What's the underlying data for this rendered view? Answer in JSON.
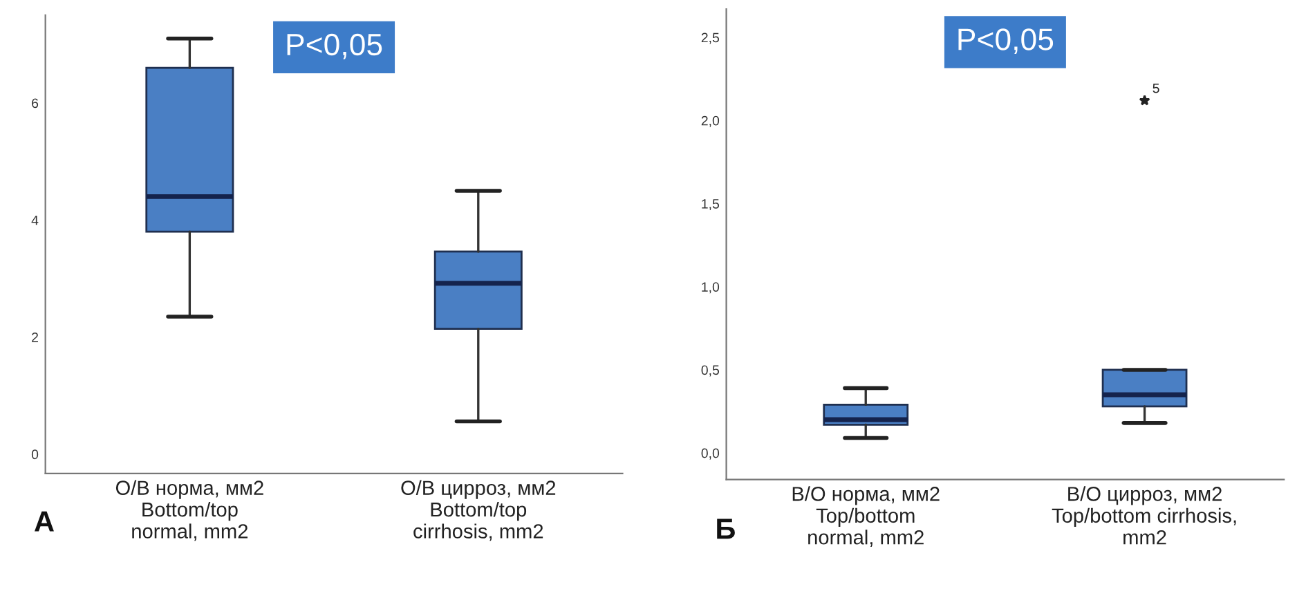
{
  "chart_data": [
    {
      "type": "box",
      "color": "#4a7fc4",
      "categories": [
        "О/В норма, мм2\nBottom/top\nnormal, mm2",
        "О/В цирроз, мм2\nBottom/top\ncirrhosis, mm2"
      ],
      "boxes": [
        {
          "low": 2.35,
          "q1": 3.8,
          "median": 4.4,
          "q3": 6.6,
          "high": 7.1
        },
        {
          "low": 0.56,
          "q1": 2.14,
          "median": 2.92,
          "q3": 3.46,
          "high": 4.5
        }
      ],
      "ylim": [
        -0.33,
        7.5
      ],
      "yticks": [
        0,
        2,
        4,
        6
      ],
      "grid": false,
      "annotations": [
        "P<0,05",
        "А"
      ]
    },
    {
      "type": "box",
      "color": "#4a7fc4",
      "categories": [
        "В/О норма, мм2\nTop/bottom\nnormal, mm2",
        "В/О цирроз, мм2\nTop/bottom cirrhosis,\nmm2"
      ],
      "boxes": [
        {
          "low": 0.09,
          "q1": 0.17,
          "median": 0.2,
          "q3": 0.29,
          "high": 0.39
        },
        {
          "low": 0.18,
          "q1": 0.28,
          "median": 0.35,
          "q3": 0.5,
          "high": 0.5,
          "outliers": [
            2.12
          ]
        }
      ],
      "ylim": [
        -0.16,
        2.67
      ],
      "yticks": [
        {
          "value": 0,
          "label": "0,0"
        },
        {
          "value": 0.5,
          "label": "0,5"
        },
        {
          "value": 1,
          "label": "1,0"
        },
        {
          "value": 1.5,
          "label": "1,5"
        },
        {
          "value": 2,
          "label": "2,0"
        },
        {
          "value": 2.5,
          "label": "2,5"
        }
      ],
      "grid": false,
      "annotations": [
        "P<0,05",
        "Б",
        "5"
      ]
    }
  ]
}
